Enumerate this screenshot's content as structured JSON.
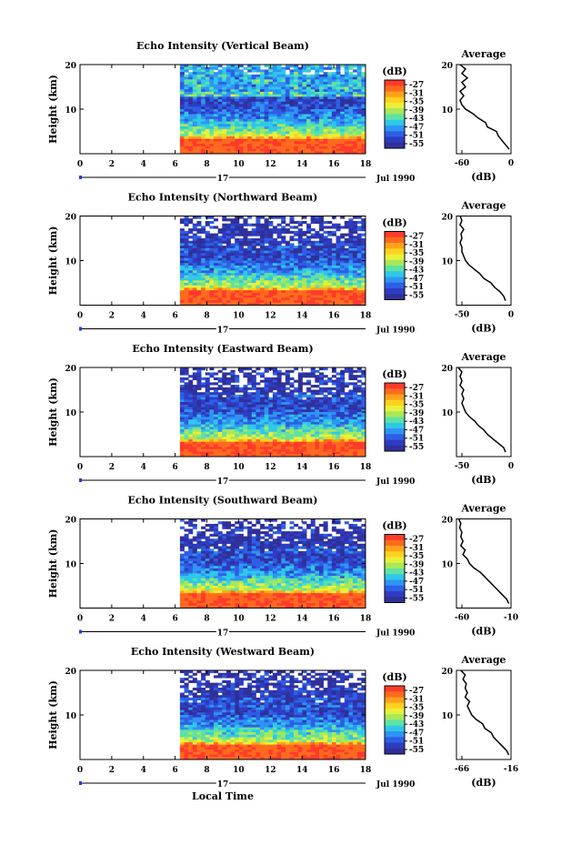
{
  "figure": {
    "xlabel": "Local Time",
    "date_label": "Jul 1990",
    "day_label": "17",
    "ylabel": "Height (km)",
    "colorbar_unit": "(dB)",
    "colorbar_ticks": [
      "-27",
      "-31",
      "-35",
      "-39",
      "-43",
      "-47",
      "-51",
      "-55"
    ],
    "colorbar_colors": [
      "#ff3b2b",
      "#ff6a1e",
      "#ffa21a",
      "#ffd21e",
      "#e9f03a",
      "#a8e85a",
      "#5ee2a4",
      "#2fc8e8",
      "#2f94f4",
      "#2d5fe6",
      "#2e3cc2",
      "#30309a"
    ],
    "x_ticks": [
      "0",
      "2",
      "4",
      "6",
      "8",
      "10",
      "12",
      "14",
      "16",
      "18"
    ],
    "y_ticks": [
      "20",
      "10"
    ],
    "avg_title": "Average",
    "avg_ylabel": "(dB)"
  },
  "chart_data": [
    {
      "type": "heatmap",
      "title": "Echo Intensity (Vertical Beam)",
      "xlabel": "Local Time",
      "ylabel": "Height (km)",
      "xlim": [
        0,
        18
      ],
      "ylim": [
        0,
        20
      ],
      "data_start_hour": 6.3,
      "color_unit": "dB",
      "color_range": [
        -55,
        -27
      ],
      "profile": {
        "title": "Average",
        "xlabel": "(dB)",
        "x_ticks": [
          "-60",
          "0"
        ],
        "xlim": [
          -60,
          0
        ],
        "heights": [
          1,
          2,
          3,
          4,
          5,
          6,
          7,
          8,
          9,
          10,
          11,
          12,
          13,
          14,
          15,
          16,
          17,
          18,
          19,
          20
        ],
        "values": [
          -2,
          -6,
          -10,
          -14,
          -16,
          -26,
          -28,
          -36,
          -42,
          -50,
          -54,
          -56,
          -52,
          -56,
          -50,
          -54,
          -48,
          -54,
          -50,
          -56
        ]
      }
    },
    {
      "type": "heatmap",
      "title": "Echo Intensity (Northward Beam)",
      "xlabel": "Local Time",
      "ylabel": "Height (km)",
      "xlim": [
        0,
        18
      ],
      "ylim": [
        0,
        20
      ],
      "data_start_hour": 6.3,
      "color_unit": "dB",
      "color_range": [
        -55,
        -27
      ],
      "profile": {
        "title": "Average",
        "xlabel": "(dB)",
        "x_ticks": [
          "-50",
          "0"
        ],
        "xlim": [
          -60,
          0
        ],
        "heights": [
          1,
          2,
          3,
          4,
          5,
          6,
          7,
          8,
          9,
          10,
          11,
          12,
          13,
          14,
          15,
          16,
          17,
          18,
          19,
          20
        ],
        "values": [
          -6,
          -8,
          -12,
          -18,
          -22,
          -30,
          -34,
          -40,
          -46,
          -50,
          -52,
          -54,
          -54,
          -56,
          -54,
          -55,
          -52,
          -56,
          -54,
          -56
        ]
      }
    },
    {
      "type": "heatmap",
      "title": "Echo Intensity (Eastward Beam)",
      "xlabel": "Local Time",
      "ylabel": "Height (km)",
      "xlim": [
        0,
        18
      ],
      "ylim": [
        0,
        20
      ],
      "data_start_hour": 6.3,
      "color_unit": "dB",
      "color_range": [
        -55,
        -27
      ],
      "profile": {
        "title": "Average",
        "xlabel": "(dB)",
        "x_ticks": [
          "-50",
          "0"
        ],
        "xlim": [
          -60,
          0
        ],
        "heights": [
          1,
          2,
          3,
          4,
          5,
          6,
          7,
          8,
          9,
          10,
          11,
          12,
          13,
          14,
          15,
          16,
          17,
          18,
          19,
          20
        ],
        "values": [
          -6,
          -8,
          -14,
          -20,
          -26,
          -30,
          -36,
          -40,
          -46,
          -50,
          -52,
          -54,
          -52,
          -54,
          -52,
          -56,
          -54,
          -56,
          -54,
          -58
        ]
      }
    },
    {
      "type": "heatmap",
      "title": "Echo Intensity (Southward Beam)",
      "xlabel": "Local Time",
      "ylabel": "Height (km)",
      "xlim": [
        0,
        18
      ],
      "ylim": [
        0,
        20
      ],
      "data_start_hour": 6.3,
      "color_unit": "dB",
      "color_range": [
        -55,
        -27
      ],
      "profile": {
        "title": "Average",
        "xlabel": "(dB)",
        "x_ticks": [
          "-60",
          "-10"
        ],
        "xlim": [
          -60,
          -10
        ],
        "heights": [
          1,
          2,
          3,
          4,
          5,
          6,
          7,
          8,
          9,
          10,
          11,
          12,
          13,
          14,
          15,
          16,
          17,
          18,
          19,
          20
        ],
        "values": [
          -12,
          -14,
          -18,
          -22,
          -26,
          -30,
          -34,
          -38,
          -44,
          -48,
          -50,
          -54,
          -52,
          -56,
          -54,
          -56,
          -55,
          -57,
          -56,
          -58
        ]
      }
    },
    {
      "type": "heatmap",
      "title": "Echo Intensity (Westward Beam)",
      "xlabel": "Local Time",
      "ylabel": "Height (km)",
      "xlim": [
        0,
        18
      ],
      "ylim": [
        0,
        20
      ],
      "data_start_hour": 6.3,
      "color_unit": "dB",
      "color_range": [
        -55,
        -27
      ],
      "profile": {
        "title": "Average",
        "xlabel": "(dB)",
        "x_ticks": [
          "-66",
          "-16"
        ],
        "xlim": [
          -66,
          -16
        ],
        "heights": [
          1,
          2,
          3,
          4,
          5,
          6,
          7,
          8,
          9,
          10,
          11,
          12,
          13,
          14,
          15,
          16,
          17,
          18,
          19,
          20
        ],
        "values": [
          -18,
          -20,
          -24,
          -28,
          -32,
          -34,
          -40,
          -42,
          -48,
          -52,
          -54,
          -56,
          -54,
          -58,
          -56,
          -58,
          -57,
          -60,
          -58,
          -62
        ]
      }
    }
  ]
}
